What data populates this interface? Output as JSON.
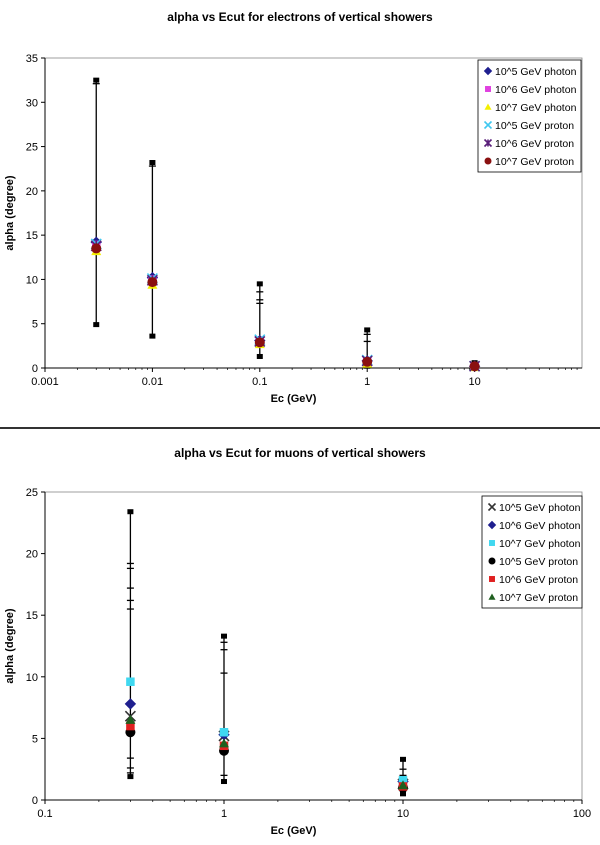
{
  "chart_data": [
    {
      "type": "scatter",
      "title": "alpha vs Ecut for electrons of vertical showers",
      "xlabel": "Ec (GeV)",
      "ylabel": "alpha (degree)",
      "xscale": "log",
      "xlim": [
        0.001,
        100
      ],
      "ylim": [
        0,
        35
      ],
      "xticks": [
        "0.001",
        "0.01",
        "0.1",
        "1",
        "10"
      ],
      "yticks": [
        "0",
        "5",
        "10",
        "15",
        "20",
        "25",
        "30",
        "35"
      ],
      "legend_position": "top-right",
      "grid": false,
      "series": [
        {
          "name": "10^5 GeV photon",
          "marker": "diamond",
          "color": "#1f1f8f",
          "x": [
            0.003,
            0.01,
            0.1,
            1,
            10
          ],
          "y": [
            14.2,
            10.2,
            3.1,
            0.8,
            0.2
          ]
        },
        {
          "name": "10^6 GeV photon",
          "marker": "square",
          "color": "#e040e0",
          "x": [
            0.003,
            0.01,
            0.1,
            1,
            10
          ],
          "y": [
            13.9,
            10.0,
            3.0,
            0.7,
            0.2
          ]
        },
        {
          "name": "10^7 GeV photon",
          "marker": "triangle",
          "color": "#f4f000",
          "x": [
            0.003,
            0.01,
            0.1,
            1,
            10
          ],
          "y": [
            13.2,
            9.4,
            2.7,
            0.5,
            0.1
          ]
        },
        {
          "name": "10^5 GeV proton",
          "marker": "x",
          "color": "#40c8f0",
          "x": [
            0.003,
            0.01,
            0.1,
            1,
            10
          ],
          "y": [
            14.0,
            10.1,
            3.2,
            0.9,
            0.2
          ]
        },
        {
          "name": "10^6 GeV proton",
          "marker": "star",
          "color": "#5a1f7a",
          "x": [
            0.003,
            0.01,
            0.1,
            1,
            10
          ],
          "y": [
            13.8,
            9.9,
            3.0,
            0.8,
            0.2
          ]
        },
        {
          "name": "10^7 GeV proton",
          "marker": "circle",
          "color": "#8a1010",
          "x": [
            0.003,
            0.01,
            0.1,
            1,
            10
          ],
          "y": [
            13.5,
            9.7,
            2.9,
            0.7,
            0.2
          ]
        }
      ],
      "error_bars": [
        {
          "x": 0.003,
          "low": 4.9,
          "high": 32.5,
          "caps": [
            32.1
          ]
        },
        {
          "x": 0.01,
          "low": 3.6,
          "high": 23.2,
          "caps": [
            22.8
          ]
        },
        {
          "x": 0.1,
          "low": 1.3,
          "high": 9.5,
          "caps": [
            8.6,
            7.7,
            7.3
          ]
        },
        {
          "x": 1,
          "low": 0.2,
          "high": 4.3,
          "caps": [
            3.8,
            3.0
          ]
        },
        {
          "x": 10,
          "low": 0.0,
          "high": 0.6,
          "caps": []
        }
      ]
    },
    {
      "type": "scatter",
      "title": "alpha vs Ecut for muons of vertical showers",
      "xlabel": "Ec (GeV)",
      "ylabel": "alpha (degree)",
      "xscale": "log",
      "xlim": [
        0.1,
        100
      ],
      "ylim": [
        0,
        25
      ],
      "xticks": [
        "0.1",
        "1",
        "10",
        "100"
      ],
      "yticks": [
        "0",
        "5",
        "10",
        "15",
        "20",
        "25"
      ],
      "legend_position": "top-right",
      "grid": false,
      "series": [
        {
          "name": "10^5 GeV photon",
          "marker": "x",
          "color": "#333333",
          "x": [
            0.3,
            1,
            10
          ],
          "y": [
            6.8,
            5.2,
            1.3
          ]
        },
        {
          "name": "10^6 GeV photon",
          "marker": "diamond",
          "color": "#1f1f8f",
          "x": [
            0.3,
            1,
            10
          ],
          "y": [
            7.8,
            5.3,
            1.5
          ]
        },
        {
          "name": "10^7 GeV photon",
          "marker": "square",
          "color": "#40d8f0",
          "x": [
            0.3,
            1,
            10
          ],
          "y": [
            9.6,
            5.5,
            1.6
          ]
        },
        {
          "name": "10^5 GeV proton",
          "marker": "circle",
          "color": "#000000",
          "x": [
            0.3,
            1,
            10
          ],
          "y": [
            5.5,
            4.0,
            1.0
          ]
        },
        {
          "name": "10^6 GeV proton",
          "marker": "square",
          "color": "#e02020",
          "x": [
            0.3,
            1,
            10
          ],
          "y": [
            6.0,
            4.4,
            1.1
          ]
        },
        {
          "name": "10^7 GeV proton",
          "marker": "triangle",
          "color": "#1f5f1f",
          "x": [
            0.3,
            1,
            10
          ],
          "y": [
            6.5,
            4.6,
            1.2
          ]
        }
      ],
      "error_bars": [
        {
          "x": 0.3,
          "low": 1.9,
          "high": 23.4,
          "caps": [
            19.2,
            18.8,
            17.2,
            16.2,
            15.5,
            3.4,
            2.6,
            2.2
          ]
        },
        {
          "x": 1,
          "low": 1.5,
          "high": 13.3,
          "caps": [
            12.8,
            12.2,
            10.3,
            2.0
          ]
        },
        {
          "x": 10,
          "low": 0.5,
          "high": 3.3,
          "caps": [
            2.5,
            2.0
          ]
        }
      ]
    }
  ]
}
